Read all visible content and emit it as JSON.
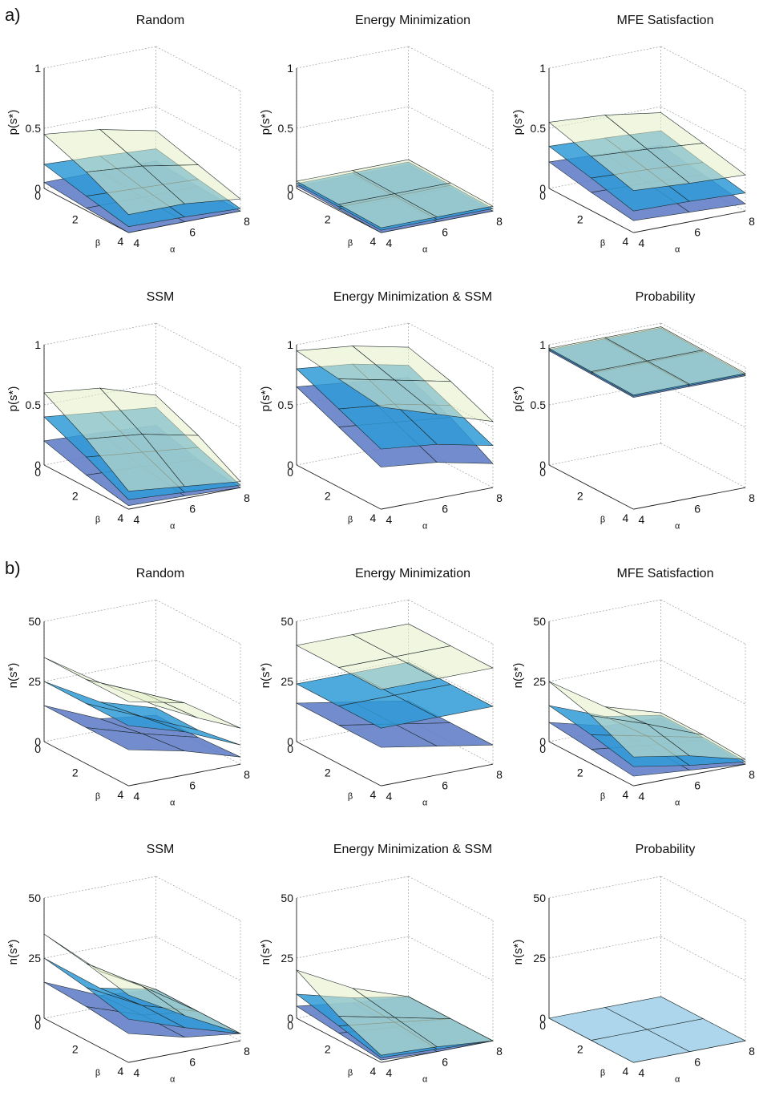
{
  "panel_labels": [
    "a)",
    "b)"
  ],
  "axis_labels": {
    "x": "α",
    "y": "β"
  },
  "colors": {
    "top_surface": "#e6efc8",
    "mid_surface": "#2f9ad6",
    "bottom_surface": "#5a78c4",
    "flat_surface": "#a9d3ea",
    "edge": "#1e2a2a"
  },
  "chart_data": [
    {
      "type": "surface3d",
      "title": "Random",
      "zlabel": "p(s*)",
      "zlim": [
        0,
        1
      ],
      "zticks": [
        "0",
        "0.5",
        "1"
      ],
      "x": [
        4,
        6,
        8
      ],
      "y": [
        0,
        2,
        4
      ],
      "xticks": [
        "4",
        "6",
        "8"
      ],
      "yticks": [
        "0",
        "2",
        "4"
      ],
      "series": [
        {
          "z": [
            [
              0.3,
              0.4,
              0.45
            ],
            [
              0.2,
              0.28,
              0.32
            ],
            [
              0.1,
              0.15,
              0.15
            ]
          ]
        },
        {
          "z": [
            [
              0.15,
              0.18,
              0.2
            ],
            [
              0.08,
              0.1,
              0.12
            ],
            [
              0.02,
              0.04,
              0.05
            ]
          ]
        },
        {
          "z": [
            [
              0.05,
              0.05,
              0.05
            ],
            [
              0.02,
              0.02,
              0.02
            ],
            [
              0.0,
              0.0,
              0.0
            ]
          ]
        }
      ]
    },
    {
      "type": "surface3d",
      "title": "Energy Minimization",
      "zlabel": "p(s*)",
      "zlim": [
        0,
        1
      ],
      "zticks": [
        "0",
        "0.5",
        "1"
      ],
      "x": [
        4,
        6,
        8
      ],
      "y": [
        0,
        2,
        4
      ],
      "xticks": [
        "4",
        "6",
        "8"
      ],
      "yticks": [
        "0",
        "2",
        "4"
      ],
      "series": [
        {
          "z": [
            [
              0.06,
              0.06,
              0.06
            ],
            [
              0.05,
              0.05,
              0.05
            ],
            [
              0.04,
              0.04,
              0.04
            ]
          ]
        },
        {
          "z": [
            [
              0.04,
              0.04,
              0.04
            ],
            [
              0.03,
              0.03,
              0.03
            ],
            [
              0.02,
              0.02,
              0.02
            ]
          ]
        },
        {
          "z": [
            [
              0.02,
              0.02,
              0.02
            ],
            [
              0.01,
              0.01,
              0.01
            ],
            [
              0.0,
              0.0,
              0.0
            ]
          ]
        }
      ]
    },
    {
      "type": "surface3d",
      "title": "MFE Satisfaction",
      "zlabel": "p(s*)",
      "zlim": [
        0,
        1
      ],
      "zticks": [
        "0",
        "0.5",
        "1"
      ],
      "x": [
        4,
        6,
        8
      ],
      "y": [
        0,
        2,
        4
      ],
      "xticks": [
        "4",
        "6",
        "8"
      ],
      "yticks": [
        "0",
        "2",
        "4"
      ],
      "series": [
        {
          "z": [
            [
              0.45,
              0.52,
              0.55
            ],
            [
              0.38,
              0.42,
              0.45
            ],
            [
              0.3,
              0.32,
              0.35
            ]
          ]
        },
        {
          "z": [
            [
              0.3,
              0.33,
              0.35
            ],
            [
              0.22,
              0.25,
              0.27
            ],
            [
              0.15,
              0.17,
              0.18
            ]
          ]
        },
        {
          "z": [
            [
              0.18,
              0.2,
              0.22
            ],
            [
              0.12,
              0.14,
              0.15
            ],
            [
              0.06,
              0.08,
              0.1
            ]
          ]
        }
      ]
    },
    {
      "type": "surface3d",
      "title": "SSM",
      "zlabel": "p(s*)",
      "zlim": [
        0,
        1
      ],
      "zticks": [
        "0",
        "0.5",
        "1"
      ],
      "x": [
        4,
        6,
        8
      ],
      "y": [
        0,
        2,
        4
      ],
      "xticks": [
        "4",
        "6",
        "8"
      ],
      "yticks": [
        "0",
        "2",
        "4"
      ],
      "series": [
        {
          "z": [
            [
              0.4,
              0.55,
              0.6
            ],
            [
              0.25,
              0.35,
              0.4
            ],
            [
              0.05,
              0.1,
              0.15
            ]
          ]
        },
        {
          "z": [
            [
              0.3,
              0.35,
              0.4
            ],
            [
              0.15,
              0.2,
              0.25
            ],
            [
              0.02,
              0.05,
              0.08
            ]
          ]
        },
        {
          "z": [
            [
              0.15,
              0.18,
              0.2
            ],
            [
              0.05,
              0.08,
              0.1
            ],
            [
              0.0,
              0.02,
              0.03
            ]
          ]
        }
      ]
    },
    {
      "type": "surface3d",
      "title": "Energy Minimization & SSM",
      "zlabel": "p(s*)",
      "zlim": [
        0,
        1
      ],
      "zticks": [
        "0",
        "0.5",
        "1"
      ],
      "x": [
        4,
        6,
        8
      ],
      "y": [
        0,
        2,
        4
      ],
      "xticks": [
        "4",
        "6",
        "8"
      ],
      "yticks": [
        "0",
        "2",
        "4"
      ],
      "series": [
        {
          "z": [
            [
              0.8,
              0.9,
              0.95
            ],
            [
              0.7,
              0.8,
              0.9
            ],
            [
              0.55,
              0.7,
              0.85
            ]
          ]
        },
        {
          "z": [
            [
              0.65,
              0.75,
              0.8
            ],
            [
              0.5,
              0.6,
              0.65
            ],
            [
              0.35,
              0.45,
              0.5
            ]
          ]
        },
        {
          "z": [
            [
              0.55,
              0.6,
              0.65
            ],
            [
              0.4,
              0.45,
              0.5
            ],
            [
              0.2,
              0.3,
              0.35
            ]
          ]
        }
      ]
    },
    {
      "type": "surface3d",
      "title": "Probability",
      "zlabel": "p(s*)",
      "zlim": [
        0,
        1
      ],
      "zticks": [
        "0",
        "0.5",
        "1"
      ],
      "x": [
        4,
        6,
        8
      ],
      "y": [
        0,
        2,
        4
      ],
      "xticks": [
        "4",
        "6",
        "8"
      ],
      "yticks": [
        "0",
        "2",
        "4"
      ],
      "series": [
        {
          "z": [
            [
              0.97,
              0.97,
              0.97
            ],
            [
              0.96,
              0.96,
              0.96
            ],
            [
              0.95,
              0.95,
              0.95
            ]
          ]
        },
        {
          "z": [
            [
              0.96,
              0.96,
              0.96
            ],
            [
              0.95,
              0.95,
              0.95
            ],
            [
              0.94,
              0.94,
              0.94
            ]
          ]
        },
        {
          "z": [
            [
              0.95,
              0.95,
              0.95
            ],
            [
              0.94,
              0.94,
              0.94
            ],
            [
              0.93,
              0.93,
              0.93
            ]
          ]
        }
      ]
    },
    {
      "type": "surface3d",
      "title": "Random",
      "zlabel": "n(s*)",
      "zlim": [
        0,
        50
      ],
      "zticks": [
        "0",
        "25",
        "50"
      ],
      "x": [
        4,
        6,
        8
      ],
      "y": [
        0,
        2,
        4
      ],
      "xticks": [
        "4",
        "6",
        "8"
      ],
      "yticks": [
        "0",
        "2",
        "4"
      ],
      "series": [
        {
          "z": [
            [
              6,
              20,
              35
            ],
            [
              10,
              25,
              35
            ],
            [
              15,
              30,
              35
            ]
          ]
        },
        {
          "z": [
            [
              5,
              12,
              25
            ],
            [
              5,
              15,
              25
            ],
            [
              8,
              18,
              25
            ]
          ]
        },
        {
          "z": [
            [
              2,
              5,
              15
            ],
            [
              2,
              8,
              15
            ],
            [
              3,
              10,
              15
            ]
          ]
        }
      ]
    },
    {
      "type": "surface3d",
      "title": "Energy Minimization",
      "zlabel": "n(s*)",
      "zlim": [
        0,
        50
      ],
      "zticks": [
        "0",
        "25",
        "50"
      ],
      "x": [
        4,
        6,
        8
      ],
      "y": [
        0,
        2,
        4
      ],
      "xticks": [
        "4",
        "6",
        "8"
      ],
      "yticks": [
        "0",
        "2",
        "4"
      ],
      "series": [
        {
          "z": [
            [
              40,
              40,
              40
            ],
            [
              40,
              40,
              40
            ],
            [
              40,
              40,
              40
            ]
          ]
        },
        {
          "z": [
            [
              24,
              24,
              24
            ],
            [
              24,
              24,
              24
            ],
            [
              24,
              24,
              24
            ]
          ]
        },
        {
          "z": [
            [
              8,
              12,
              16
            ],
            [
              8,
              12,
              16
            ],
            [
              8,
              12,
              16
            ]
          ]
        }
      ]
    },
    {
      "type": "surface3d",
      "title": "MFE Satisfaction",
      "zlabel": "n(s*)",
      "zlim": [
        0,
        50
      ],
      "zticks": [
        "0",
        "25",
        "50"
      ],
      "x": [
        4,
        6,
        8
      ],
      "y": [
        0,
        2,
        4
      ],
      "xticks": [
        "4",
        "6",
        "8"
      ],
      "yticks": [
        "0",
        "2",
        "4"
      ],
      "series": [
        {
          "z": [
            [
              3,
              10,
              25
            ],
            [
              3,
              12,
              20
            ],
            [
              2,
              8,
              12
            ]
          ]
        },
        {
          "z": [
            [
              2,
              6,
              15
            ],
            [
              2,
              7,
              12
            ],
            [
              1,
              4,
              8
            ]
          ]
        },
        {
          "z": [
            [
              1,
              2,
              8
            ],
            [
              1,
              3,
              6
            ],
            [
              0,
              2,
              4
            ]
          ]
        }
      ]
    },
    {
      "type": "surface3d",
      "title": "SSM",
      "zlabel": "n(s*)",
      "zlim": [
        0,
        50
      ],
      "zticks": [
        "0",
        "25",
        "50"
      ],
      "x": [
        4,
        6,
        8
      ],
      "y": [
        0,
        2,
        4
      ],
      "xticks": [
        "4",
        "6",
        "8"
      ],
      "yticks": [
        "0",
        "2",
        "4"
      ],
      "series": [
        {
          "z": [
            [
              3,
              15,
              35
            ],
            [
              3,
              18,
              32
            ],
            [
              3,
              15,
              28
            ]
          ]
        },
        {
          "z": [
            [
              3,
              8,
              25
            ],
            [
              3,
              10,
              22
            ],
            [
              3,
              10,
              18
            ]
          ]
        },
        {
          "z": [
            [
              3,
              5,
              15
            ],
            [
              3,
              6,
              14
            ],
            [
              3,
              6,
              12
            ]
          ]
        }
      ]
    },
    {
      "type": "surface3d",
      "title": "Energy Minimization & SSM",
      "zlabel": "n(s*)",
      "zlim": [
        0,
        50
      ],
      "zticks": [
        "0",
        "25",
        "50"
      ],
      "x": [
        4,
        6,
        8
      ],
      "y": [
        0,
        2,
        4
      ],
      "xticks": [
        "4",
        "6",
        "8"
      ],
      "yticks": [
        "0",
        "2",
        "4"
      ],
      "series": [
        {
          "z": [
            [
              0,
              8,
              20
            ],
            [
              0,
              5,
              10
            ],
            [
              0,
              2,
              3
            ]
          ]
        },
        {
          "z": [
            [
              0,
              4,
              10
            ],
            [
              0,
              3,
              6
            ],
            [
              0,
              1,
              2
            ]
          ]
        },
        {
          "z": [
            [
              0,
              2,
              5
            ],
            [
              0,
              1,
              3
            ],
            [
              0,
              0,
              1
            ]
          ]
        }
      ]
    },
    {
      "type": "surface3d",
      "title": "Probability",
      "zlabel": "n(s*)",
      "zlim": [
        0,
        50
      ],
      "zticks": [
        "0",
        "25",
        "50"
      ],
      "x": [
        4,
        6,
        8
      ],
      "y": [
        0,
        2,
        4
      ],
      "xticks": [
        "4",
        "6",
        "8"
      ],
      "yticks": [
        "0",
        "2",
        "4"
      ],
      "series": [
        {
          "z": [
            [
              0,
              0,
              0
            ],
            [
              0,
              0,
              0
            ],
            [
              0,
              0,
              0
            ]
          ]
        }
      ]
    }
  ]
}
